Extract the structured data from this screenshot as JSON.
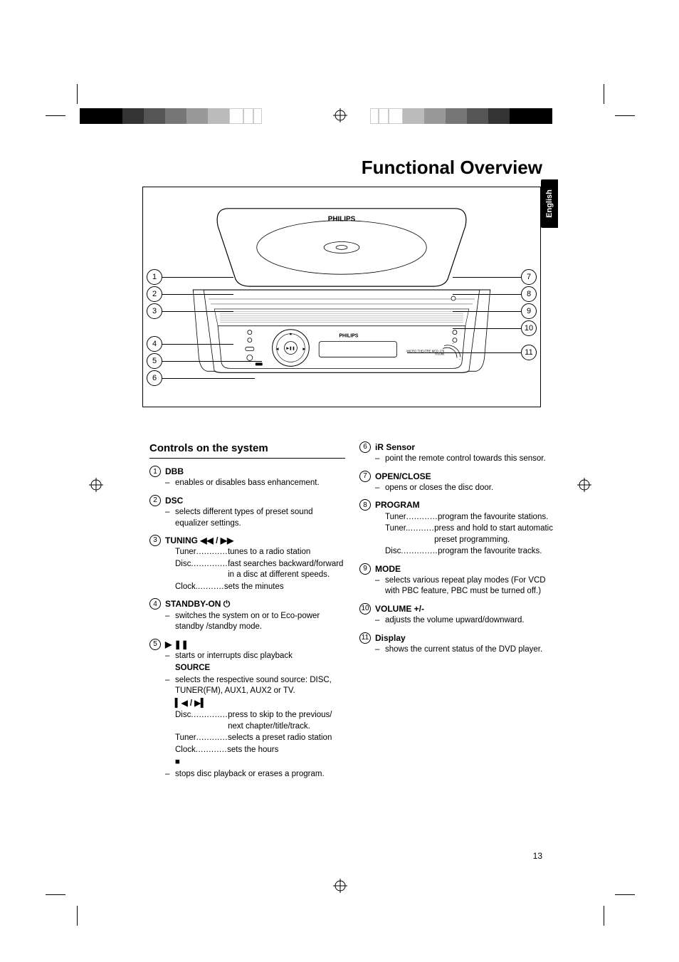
{
  "colors": {
    "page_bg": "#ffffff",
    "text": "#000000",
    "rule": "#000000",
    "tab_bg": "#000000",
    "tab_fg": "#ffffff",
    "reg_palette": [
      "#000000",
      "#333333",
      "#555555",
      "#777777",
      "#999999",
      "#bbbbbb",
      "#ffffff"
    ]
  },
  "page": {
    "title": "Functional Overview",
    "language_tab": "English",
    "page_number": "13",
    "section_heading": "Controls on the system"
  },
  "diagram": {
    "brand_top": "PHILIPS",
    "brand_front": "PHILIPS",
    "front_text": "MICRO THEATRE MCD 170",
    "btn_labels": {
      "dbb": "DBB",
      "dsc": "DSC",
      "tuning": "TUNING",
      "standby": "STANDBY·ON",
      "open": "OPEN/CLOSE",
      "program": "PROGRAM",
      "mode": "MODE",
      "volume": "VOLUME"
    },
    "left_callouts": [
      1,
      2,
      3,
      4,
      5,
      6
    ],
    "right_callouts": [
      7,
      8,
      9,
      10,
      11
    ]
  },
  "left_column": [
    {
      "n": 1,
      "label": "DBB",
      "subs": [
        {
          "dash": "–",
          "txt": "enables or disables bass enhancement."
        }
      ]
    },
    {
      "n": 2,
      "label": "DSC",
      "subs": [
        {
          "dash": "–",
          "txt": "selects different types of preset sound equalizer settings."
        }
      ]
    },
    {
      "n": 3,
      "label": "TUNING ◀◀ / ▶▶",
      "dotlines": [
        {
          "k": "Tuner",
          "v": "tunes to a radio station"
        },
        {
          "k": "Disc",
          "v": "fast searches backward/forward in a disc at different speeds."
        },
        {
          "k": "Clock.",
          "v": "sets the minutes"
        }
      ]
    },
    {
      "n": 4,
      "label": "STANDBY-ON ⏻",
      "subs": [
        {
          "dash": "–",
          "txt": "switches the system on or to Eco-power standby /standby mode."
        }
      ]
    },
    {
      "n": 5,
      "label": "▶ ❚❚",
      "subs": [
        {
          "dash": "–",
          "txt": " starts or interrupts disc playback"
        }
      ],
      "extra": [
        {
          "bold": "SOURCE"
        },
        {
          "dash": "–",
          "txt": "selects the respective sound source: DISC, TUNER(FM), AUX1, AUX2 or TV."
        },
        {
          "bold": "▍◀ / ▶▍"
        },
        {
          "dot_k": "Disc",
          "dot_v": "press to skip to the previous/ next chapter/title/track."
        },
        {
          "dot_k": "Tuner",
          "dot_v": "selects a preset radio station"
        },
        {
          "dot_k": "Clock",
          "dot_v": "sets the hours"
        },
        {
          "bold": "■"
        },
        {
          "dash": "–",
          "txt": "stops disc playback or erases a program."
        }
      ]
    }
  ],
  "right_column": [
    {
      "n": 6,
      "label": "iR Sensor",
      "subs": [
        {
          "dash": "–",
          "txt": "point the remote control towards this sensor."
        }
      ]
    },
    {
      "n": 7,
      "label": "OPEN/CLOSE",
      "subs": [
        {
          "dash": "–",
          "txt": "opens or closes the disc door."
        }
      ]
    },
    {
      "n": 8,
      "label": "PROGRAM",
      "dotlines": [
        {
          "k": "Tuner",
          "v": "program the favourite stations."
        },
        {
          "k": "Tuner.",
          "v": "press and hold to start automatic preset programming."
        },
        {
          "k": "Disc",
          "v": "program the favourite tracks."
        }
      ]
    },
    {
      "n": 9,
      "label": "MODE",
      "subs": [
        {
          "dash": "–",
          "txt": "selects various repeat play modes (For VCD with PBC feature, PBC must be turned off.)"
        }
      ]
    },
    {
      "n": 10,
      "label": "VOLUME +/-",
      "subs": [
        {
          "dash": "–",
          "txt": "adjusts the volume upward/downward."
        }
      ]
    },
    {
      "n": 11,
      "label": "Display",
      "subs": [
        {
          "dash": "–",
          "txt": "shows the current status of the DVD player."
        }
      ]
    }
  ]
}
